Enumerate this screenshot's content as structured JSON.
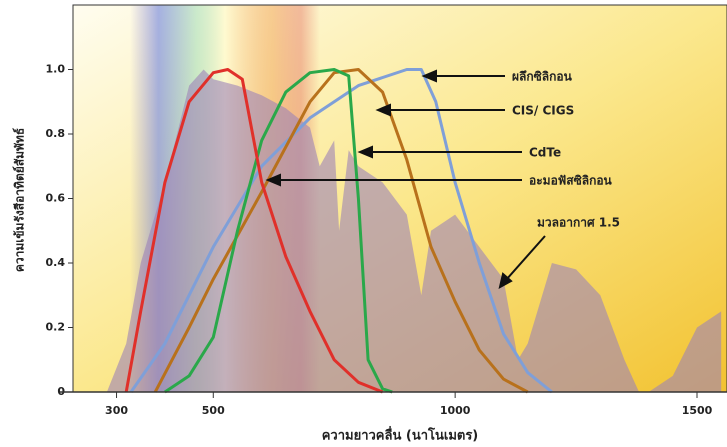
{
  "chart_data": {
    "type": "line",
    "x_label": "ความยาวคลื่น (นาโนเมตร)",
    "y_label": "ความเข้มรังสีอาทิตย์สัมพัทธ์",
    "xlim": [
      210,
      1562
    ],
    "ylim": [
      0,
      1.2
    ],
    "xticks": [
      300,
      500,
      1000,
      1500
    ],
    "yticks": [
      {
        "value": 0,
        "label": "0"
      },
      0.2,
      0.4,
      0.6,
      0.8,
      {
        "value": 1,
        "label": "1.0"
      }
    ],
    "series": [
      {
        "name": "ผลึกซิลิกอน",
        "color": "#7f9fd8",
        "x": [
          330,
          400,
          500,
          600,
          700,
          800,
          900,
          930,
          960,
          1000,
          1050,
          1100,
          1150,
          1200
        ],
        "values": [
          0,
          0.15,
          0.45,
          0.7,
          0.85,
          0.95,
          1.0,
          1.0,
          0.9,
          0.65,
          0.4,
          0.18,
          0.06,
          0
        ]
      },
      {
        "name": "CIS/ CIGS",
        "color": "#b8711c",
        "x": [
          380,
          450,
          500,
          600,
          700,
          750,
          800,
          850,
          900,
          950,
          1000,
          1050,
          1100,
          1150
        ],
        "values": [
          0,
          0.2,
          0.35,
          0.62,
          0.9,
          0.99,
          1.0,
          0.93,
          0.72,
          0.45,
          0.28,
          0.13,
          0.04,
          0
        ]
      },
      {
        "name": "CdTe",
        "color": "#2aa84a",
        "x": [
          400,
          450,
          500,
          550,
          600,
          650,
          700,
          750,
          780,
          800,
          820,
          850,
          870
        ],
        "values": [
          0,
          0.05,
          0.17,
          0.5,
          0.78,
          0.93,
          0.99,
          1.0,
          0.98,
          0.6,
          0.1,
          0.01,
          0
        ]
      },
      {
        "name": "อะมอฟัสซิลิกอน",
        "color": "#e0302a",
        "x": [
          320,
          350,
          400,
          450,
          500,
          530,
          560,
          600,
          650,
          700,
          750,
          800,
          850
        ],
        "values": [
          0,
          0.25,
          0.65,
          0.9,
          0.99,
          1.0,
          0.97,
          0.65,
          0.42,
          0.25,
          0.1,
          0.03,
          0
        ]
      },
      {
        "name": "มวลอากาศ 1.5",
        "color": "#9c82b8",
        "fill": true,
        "x": [
          280,
          320,
          350,
          400,
          450,
          480,
          500,
          550,
          600,
          650,
          700,
          720,
          750,
          760,
          780,
          800,
          850,
          900,
          930,
          950,
          1000,
          1050,
          1100,
          1130,
          1150,
          1200,
          1250,
          1300,
          1350,
          1380,
          1400,
          1450,
          1500,
          1550
        ],
        "values": [
          0,
          0.15,
          0.4,
          0.65,
          0.95,
          1.0,
          0.97,
          0.95,
          0.92,
          0.88,
          0.82,
          0.7,
          0.78,
          0.5,
          0.75,
          0.7,
          0.65,
          0.55,
          0.3,
          0.5,
          0.55,
          0.45,
          0.35,
          0.1,
          0.15,
          0.4,
          0.38,
          0.3,
          0.1,
          0,
          0,
          0.05,
          0.2,
          0.25
        ]
      }
    ]
  }
}
